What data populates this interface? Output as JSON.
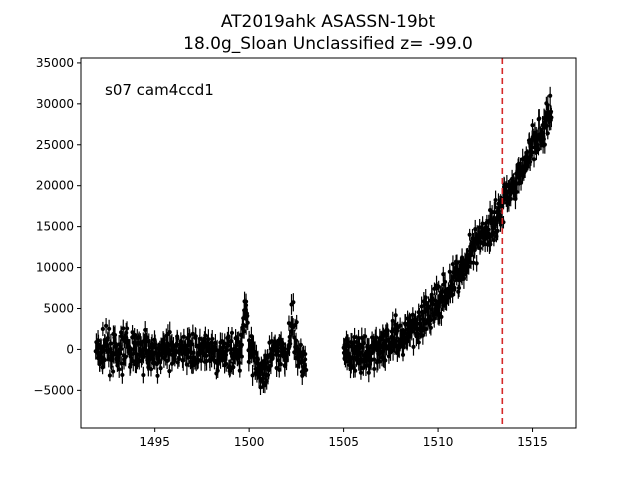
{
  "chart_data": {
    "type": "scatter",
    "title": "AT2019ahk  ASASSN-19bt",
    "subtitle": "18.0g_Sloan Unclassified z= -99.0",
    "annotation": "s07 cam4ccd1",
    "xlabel": "",
    "ylabel": "",
    "xlim": [
      1491.1,
      1517.3
    ],
    "ylim": [
      -9600,
      35600
    ],
    "x_ticks": [
      1495,
      1500,
      1505,
      1510,
      1515
    ],
    "y_ticks": [
      -5000,
      0,
      5000,
      10000,
      15000,
      20000,
      25000,
      30000,
      35000
    ],
    "grid": false,
    "legend": "none",
    "vline": {
      "x": 1513.4,
      "color": "#d62728",
      "style": "dashed"
    },
    "marker_color": "#000000",
    "error_bars": true,
    "segments": [
      {
        "name": "",
        "x": [
          1491.9,
          1492.5,
          1493.0,
          1493.5,
          1494.0,
          1494.5,
          1495.0,
          1495.5,
          1496.0,
          1496.5,
          1497.0,
          1497.5,
          1498.0,
          1498.5,
          1499.0,
          1499.5,
          1499.8,
          1500.0,
          1500.5,
          1501.0,
          1501.5,
          1502.0,
          1502.3,
          1502.6,
          1503.0
        ],
        "y": [
          -500,
          0,
          -800,
          300,
          -300,
          200,
          -500,
          0,
          -300,
          -200,
          100,
          0,
          -300,
          -1000,
          100,
          -500,
          6000,
          200,
          -3000,
          -1500,
          0,
          -800,
          3500,
          -500,
          -2000
        ]
      },
      {
        "name": "",
        "x": [
          1505.0,
          1505.5,
          1506.0,
          1506.5,
          1507.0,
          1507.5,
          1508.0,
          1508.5,
          1509.0,
          1509.5,
          1510.0,
          1510.5,
          1511.0,
          1511.5,
          1512.0,
          1512.5,
          1513.0,
          1513.5,
          1514.0,
          1514.5,
          1515.0,
          1515.5,
          1516.0
        ],
        "y": [
          0,
          -500,
          -800,
          0,
          300,
          800,
          1500,
          2000,
          3000,
          4500,
          6000,
          7000,
          9000,
          10500,
          12500,
          14000,
          15500,
          18000,
          20000,
          22000,
          25000,
          27000,
          29000
        ]
      }
    ]
  }
}
